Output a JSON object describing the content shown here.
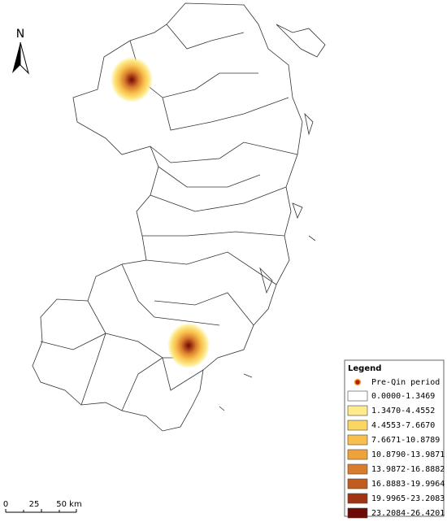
{
  "north_arrow": {
    "label": "N"
  },
  "legend": {
    "title": "Legend",
    "point": {
      "label": "Pre-Qin period",
      "color": "#b01e10"
    },
    "classes": [
      {
        "label": "0.0000-1.3469",
        "color": "#ffffff"
      },
      {
        "label": "1.3470-4.4552",
        "color": "#fdeb8c"
      },
      {
        "label": "4.4553-7.6670",
        "color": "#fbd762"
      },
      {
        "label": "7.6671-10.8789",
        "color": "#f8bf4c"
      },
      {
        "label": "10.8790-13.9871",
        "color": "#efa23a"
      },
      {
        "label": "13.9872-16.8882",
        "color": "#d97d2d"
      },
      {
        "label": "16.8883-19.9964",
        "color": "#c15b20"
      },
      {
        "label": "19.9965-23.2083",
        "color": "#a03514"
      },
      {
        "label": "23.2084-26.4201",
        "color": "#6e0a06"
      }
    ]
  },
  "scale_bar": {
    "labels": [
      "0",
      "25",
      "50 km"
    ]
  }
}
